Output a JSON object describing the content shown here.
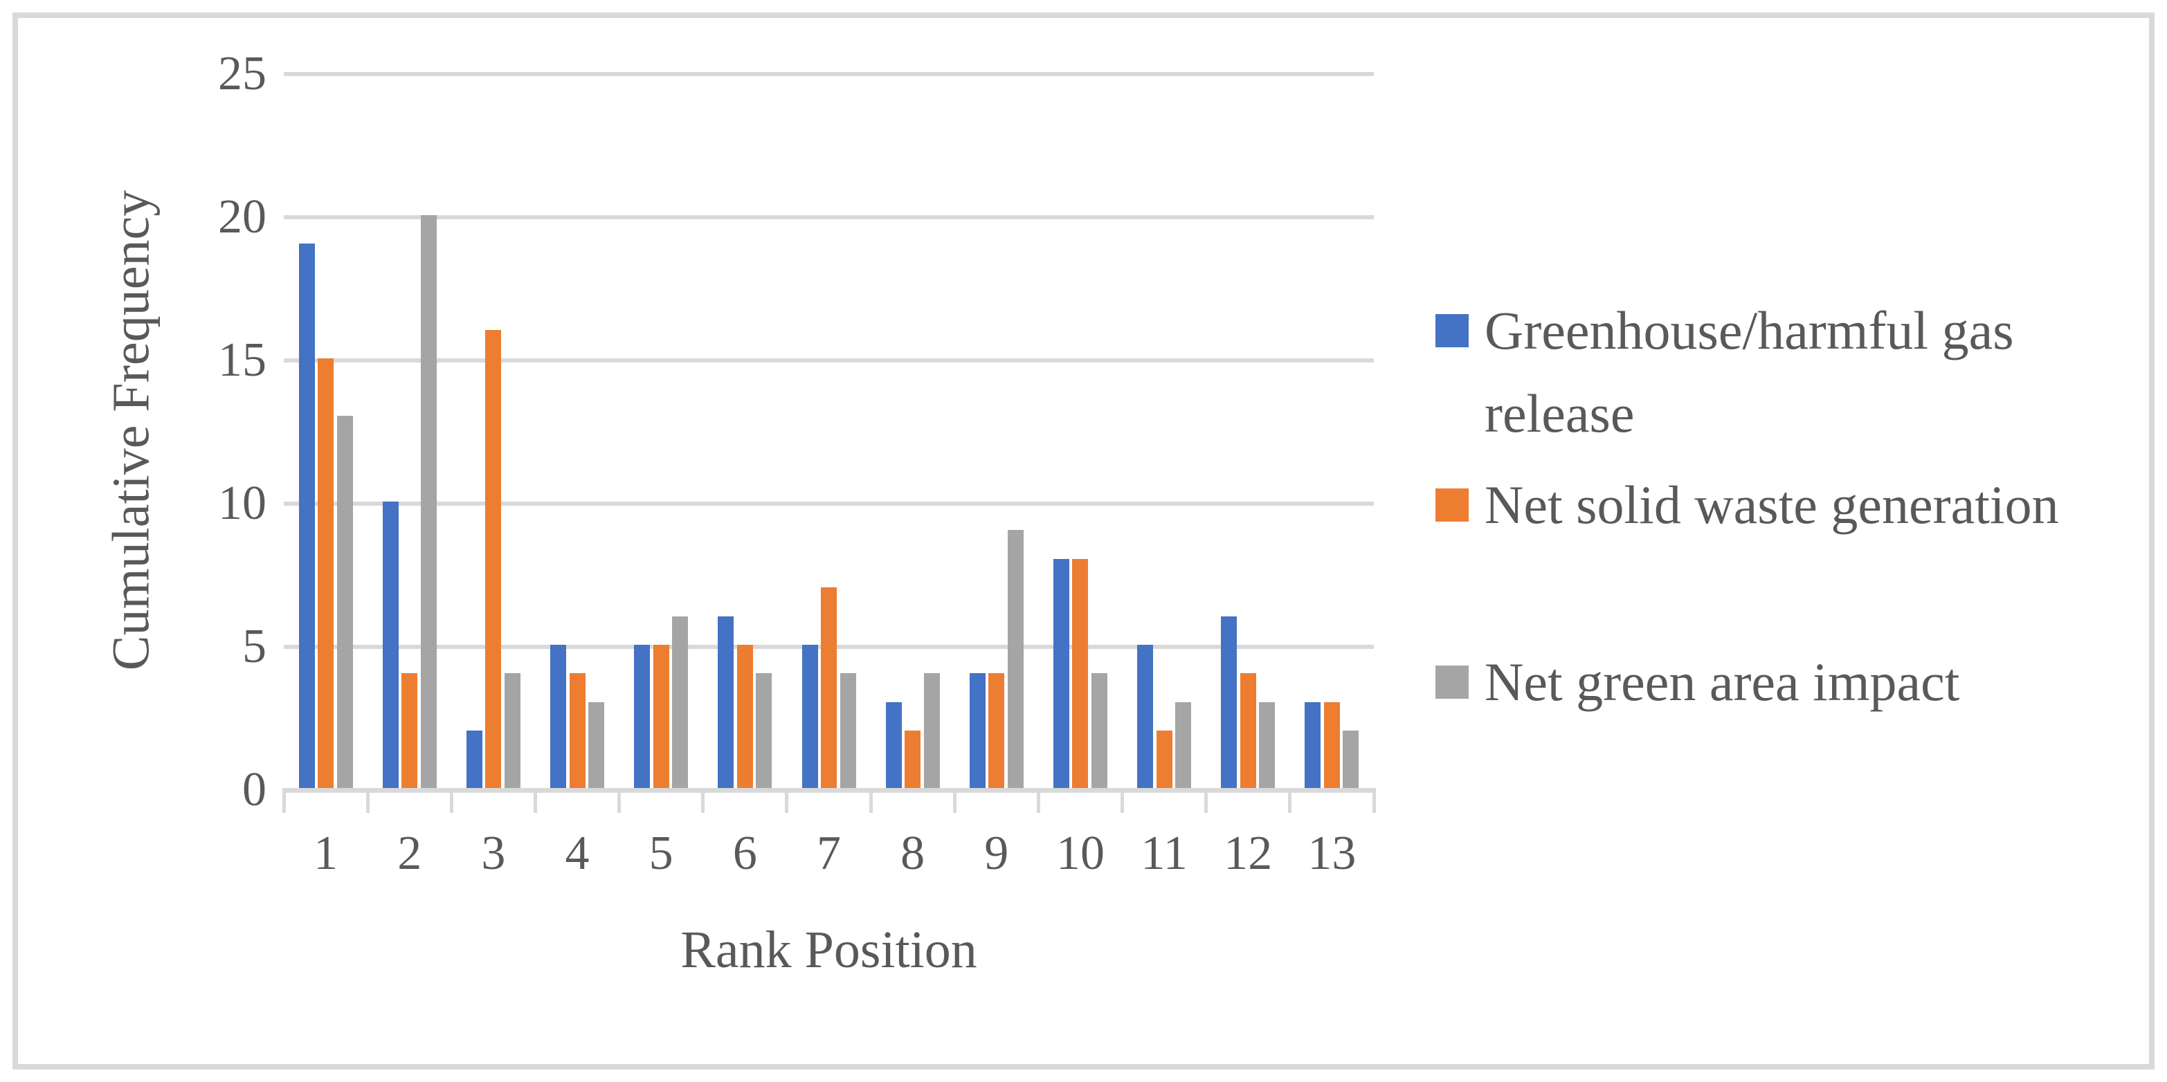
{
  "chart_data": {
    "type": "bar",
    "title": "",
    "xlabel": "Rank Position",
    "ylabel": "Cumulative Frequency",
    "categories": [
      "1",
      "2",
      "3",
      "4",
      "5",
      "6",
      "7",
      "8",
      "9",
      "10",
      "11",
      "12",
      "13"
    ],
    "series": [
      {
        "name": "Greenhouse/harmful gas release",
        "name_lines": [
          "Greenhouse/harmful gas",
          "release"
        ],
        "color": "#4472C4",
        "values": [
          19,
          10,
          2,
          5,
          5,
          6,
          5,
          3,
          4,
          8,
          5,
          6,
          3
        ]
      },
      {
        "name": "Net solid waste generation",
        "name_lines": [
          "Net solid waste generation"
        ],
        "color": "#ED7D31",
        "values": [
          15,
          4,
          16,
          4,
          5,
          5,
          7,
          2,
          4,
          8,
          2,
          4,
          3
        ]
      },
      {
        "name": "Net green area impact",
        "name_lines": [
          "Net green area impact"
        ],
        "color": "#A5A5A5",
        "values": [
          13,
          20,
          4,
          3,
          6,
          4,
          4,
          4,
          9,
          4,
          3,
          3,
          2
        ]
      }
    ],
    "ylim": [
      0,
      25
    ],
    "ytick_step": 5,
    "yticks": [
      "0",
      "5",
      "10",
      "15",
      "20",
      "25"
    ],
    "grid": "horizontal-only",
    "legend_position": "right"
  },
  "colors": {
    "text": "#595959",
    "gridline": "#D9D9D9",
    "axis_line": "#D9D9D9",
    "frame_border": "#D9D9D9",
    "background": "#FFFFFF"
  }
}
